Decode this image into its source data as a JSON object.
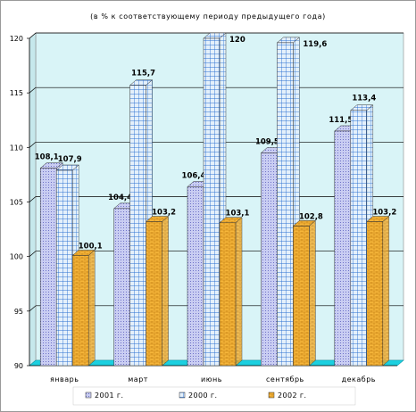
{
  "chart_data": {
    "type": "bar",
    "subtitle": "(в % к  соответствующему  периоду  предыдущего  года)",
    "categories": [
      "январь",
      "март",
      "июнь",
      "сентябрь",
      "декабрь"
    ],
    "series": [
      {
        "name": "2001 г.",
        "values": [
          108.1,
          104.4,
          106.4,
          109.5,
          111.5
        ],
        "labels": [
          "108,1",
          "104,4",
          "106,4",
          "109,5",
          "111,5"
        ],
        "color": "#c9cdf2"
      },
      {
        "name": "2000 г.",
        "values": [
          107.9,
          115.7,
          120,
          119.6,
          113.4
        ],
        "labels": [
          "107,9",
          "115,7",
          "120",
          "119,6",
          "113,4"
        ],
        "color": "#bcdcf2"
      },
      {
        "name": "2002 г.",
        "values": [
          100.1,
          103.2,
          103.1,
          102.8,
          103.2
        ],
        "labels": [
          "100,1",
          "103,2",
          "103,1",
          "102,8",
          "103,2"
        ],
        "color": "#f4b233"
      }
    ],
    "ylim": [
      90,
      120
    ],
    "yticks": [
      90,
      95,
      100,
      105,
      110,
      115,
      120
    ],
    "grid": true,
    "legend": "bottom",
    "plot_wall_color": "#d9f4f7",
    "floor_color": "#1bd0e0"
  }
}
